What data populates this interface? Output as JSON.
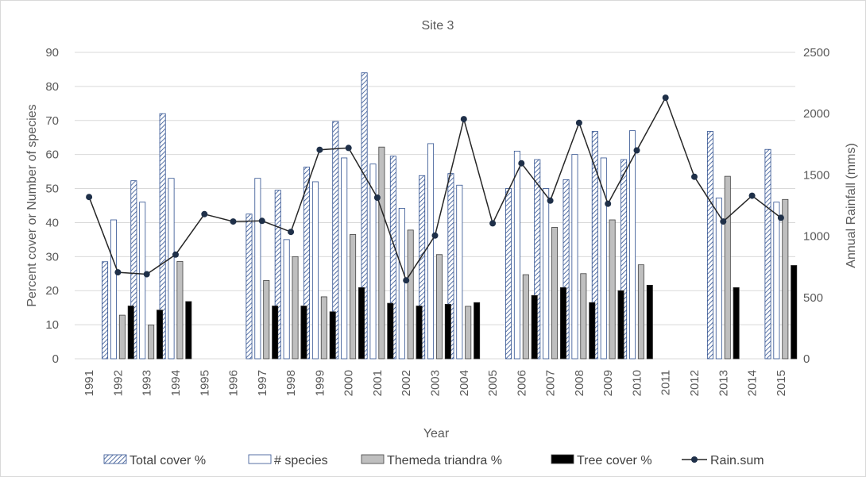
{
  "chart_data": {
    "type": "bar",
    "title": "Site 3",
    "xlabel": "Year",
    "ylabel": "Percent cover or Number of species",
    "y2label": "Annual Rainfall (mms)",
    "ylim": [
      0,
      90
    ],
    "y2lim": [
      0,
      2500
    ],
    "yticks": [
      "0",
      "10",
      "20",
      "30",
      "40",
      "50",
      "60",
      "70",
      "80",
      "90"
    ],
    "y2ticks": [
      "0",
      "500",
      "1000",
      "1500",
      "2000",
      "2500"
    ],
    "categories": [
      "1991",
      "1992",
      "1993",
      "1994",
      "1995",
      "1996",
      "1997",
      "1998",
      "1999",
      "2000",
      "2001",
      "2002",
      "2003",
      "2004",
      "2005",
      "2006",
      "2007",
      "2008",
      "2009",
      "2010",
      "2011",
      "2012",
      "2013",
      "2014",
      "2015"
    ],
    "series": [
      {
        "name": "Total cover %",
        "type": "bar",
        "axis": "left",
        "color": "#2e4f8f",
        "values": [
          null,
          28.5,
          52.3,
          72,
          null,
          null,
          42.5,
          49.5,
          56.3,
          69.7,
          84,
          59.5,
          53.8,
          54.4,
          null,
          50,
          58.5,
          52.6,
          66.8,
          58.5,
          null,
          null,
          66.8,
          null,
          61.5
        ]
      },
      {
        "name": "# species",
        "type": "bar",
        "axis": "left",
        "color": "#ffffff",
        "values": [
          null,
          40.8,
          46,
          53,
          null,
          null,
          53,
          35,
          52,
          59,
          57.2,
          44.2,
          63.2,
          51,
          null,
          61,
          50,
          60,
          59,
          67,
          null,
          null,
          47.2,
          null,
          46
        ]
      },
      {
        "name": "Themeda triandra %",
        "type": "bar",
        "axis": "left",
        "color": "#bfbfbf",
        "values": [
          null,
          12.8,
          9.9,
          28.6,
          null,
          null,
          23,
          30,
          18.2,
          36.5,
          62.2,
          37.8,
          30.6,
          15.4,
          null,
          24.7,
          38.6,
          25,
          40.8,
          27.6,
          null,
          null,
          53.6,
          null,
          46.8
        ]
      },
      {
        "name": "Tree cover %",
        "type": "bar",
        "axis": "left",
        "color": "#000000",
        "values": [
          null,
          15.5,
          14.3,
          16.8,
          null,
          null,
          15.5,
          15.5,
          13.8,
          20.9,
          16.3,
          15.5,
          16,
          16.5,
          null,
          18.6,
          20.9,
          16.5,
          20,
          21.6,
          null,
          null,
          20.9,
          null,
          27.4
        ]
      },
      {
        "name": "Rain.sum",
        "type": "line",
        "axis": "right",
        "color": "#1f2d3d",
        "values": [
          1320,
          705,
          690,
          850,
          1180,
          1120,
          1125,
          1035,
          1705,
          1720,
          1315,
          640,
          1005,
          1955,
          1105,
          1595,
          1290,
          1925,
          1265,
          1700,
          2130,
          1485,
          1120,
          1330,
          1150
        ]
      }
    ],
    "legend_position": "bottom",
    "grid": true
  }
}
